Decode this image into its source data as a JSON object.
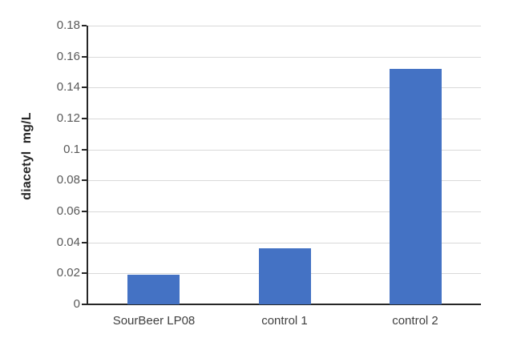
{
  "chart_data": {
    "type": "bar",
    "title": "",
    "xlabel": "",
    "ylabel": "diacetyl  mg/L",
    "categories": [
      "SourBeer LP08",
      "control 1",
      "control 2"
    ],
    "values": [
      0.019,
      0.036,
      0.152
    ],
    "series": [
      {
        "name": "diacetyl",
        "values": [
          0.019,
          0.036,
          0.152
        ]
      }
    ],
    "ylim": [
      0,
      0.18
    ],
    "ytick_values": [
      0,
      0.02,
      0.04,
      0.06,
      0.08,
      0.1,
      0.12,
      0.14,
      0.16,
      0.18
    ],
    "ytick_labels": [
      "0",
      "0.02",
      "0.04",
      "0.06",
      "0.08",
      "0.1",
      "0.12",
      "0.14",
      "0.16",
      "0.18"
    ],
    "grid": true,
    "legend": false,
    "legend_position": "none",
    "colors": {
      "bar": "#4472C4",
      "gridline": "#D9D9D9",
      "axis": "#262626",
      "tick_label": "#595959",
      "category_label": "#3F3F3F",
      "axis_title": "#262626",
      "background": "#FFFFFF"
    }
  }
}
